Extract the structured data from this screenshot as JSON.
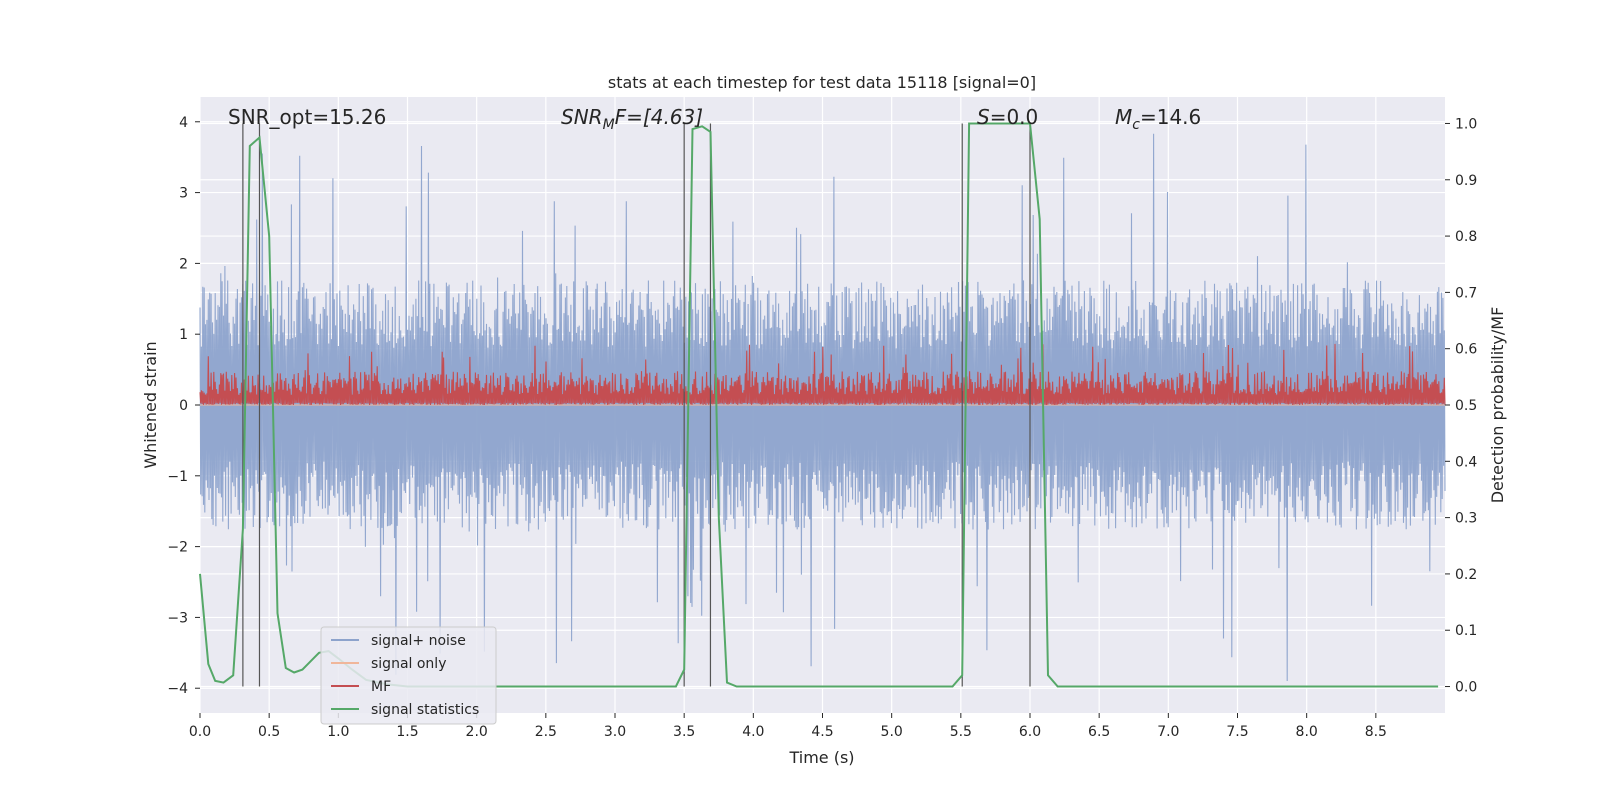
{
  "chart_data": {
    "type": "line",
    "title": "stats at each timestep for test data 15118 [signal=0]",
    "xlabel": "Time (s)",
    "ylabel_left": "Whitened strain",
    "ylabel_right": "Detection probability/MF",
    "xlim": [
      0.0,
      9.0
    ],
    "ylim_left": [
      -4.35,
      4.35
    ],
    "ylim_right": [
      -0.047,
      1.047
    ],
    "x_ticks": [
      0.0,
      0.5,
      1.0,
      1.5,
      2.0,
      2.5,
      3.0,
      3.5,
      4.0,
      4.5,
      5.0,
      5.5,
      6.0,
      6.5,
      7.0,
      7.5,
      8.0,
      8.5
    ],
    "x_tick_labels": [
      "0.0",
      "0.5",
      "1.0",
      "1.5",
      "2.0",
      "2.5",
      "3.0",
      "3.5",
      "4.0",
      "4.5",
      "5.0",
      "5.5",
      "6.0",
      "6.5",
      "7.0",
      "7.5",
      "8.0",
      "8.5"
    ],
    "y_left_ticks": [
      4,
      3,
      2,
      1,
      0,
      -1,
      -2,
      -3,
      -4
    ],
    "y_left_tick_labels": [
      "4",
      "3",
      "2",
      "1",
      "0",
      "−1",
      "−2",
      "−3",
      "−4"
    ],
    "y_right_ticks": [
      1.0,
      0.9,
      0.8,
      0.7,
      0.6,
      0.5,
      0.4,
      0.3,
      0.2,
      0.1,
      0.0
    ],
    "y_right_tick_labels": [
      "1.0",
      "0.9",
      "0.8",
      "0.7",
      "0.6",
      "0.5",
      "0.4",
      "0.3",
      "0.2",
      "0.1",
      "0.0"
    ],
    "grid": true,
    "legend_position": "lower-left",
    "annotations": {
      "snr_opt": "SNR_opt=15.26",
      "snr_mf_main": "SNR",
      "snr_mf_sub": "M",
      "snr_mf_tail": "F=[4.63]",
      "s_main": "S",
      "s_tail": "=0.0",
      "mc_main": "M",
      "mc_sub": "c",
      "mc_tail": "=14.6"
    },
    "vertical_lines": [
      {
        "x0": 0.31,
        "x1": 0.43
      },
      {
        "x0": 3.5,
        "x1": 3.69
      },
      {
        "x0": 5.51,
        "x1": 6.0
      }
    ],
    "series": [
      {
        "name": "signal+ noise",
        "axis": "left",
        "color": "#8da3cc",
        "style": "noise",
        "amplitude_typical": 1.6,
        "amplitude_peak": 4.0,
        "samples": 1800
      },
      {
        "name": "signal only",
        "axis": "left",
        "color": "#f0b69a",
        "style": "flat",
        "value": 0.0
      },
      {
        "name": "MF",
        "axis": "right",
        "color": "#c44e52",
        "style": "noise",
        "baseline": 0.5,
        "typical_max": 0.56,
        "peak_max": 0.61,
        "samples": 1800
      },
      {
        "name": "signal statistics",
        "axis": "right",
        "color": "#55a868",
        "style": "line",
        "x": [
          0.0,
          0.06,
          0.11,
          0.17,
          0.24,
          0.31,
          0.36,
          0.43,
          0.5,
          0.56,
          0.62,
          0.68,
          0.74,
          0.8,
          0.86,
          0.93,
          1.0,
          1.1,
          1.2,
          1.35,
          1.5,
          2.0,
          2.5,
          3.0,
          3.44,
          3.5,
          3.56,
          3.63,
          3.69,
          3.75,
          3.81,
          3.88,
          4.0,
          4.5,
          5.0,
          5.44,
          5.51,
          5.56,
          5.75,
          6.0,
          6.07,
          6.13,
          6.2,
          6.5,
          7.0,
          7.5,
          8.0,
          8.5,
          8.95
        ],
        "y": [
          0.2,
          0.04,
          0.01,
          0.007,
          0.02,
          0.28,
          0.96,
          0.975,
          0.8,
          0.13,
          0.033,
          0.025,
          0.03,
          0.045,
          0.06,
          0.063,
          0.05,
          0.03,
          0.012,
          0.004,
          0.0,
          0.0,
          0.0,
          0.0,
          0.0,
          0.03,
          0.99,
          0.995,
          0.985,
          0.3,
          0.007,
          0.0,
          0.0,
          0.0,
          0.0,
          0.0,
          0.02,
          1.0,
          1.0,
          1.0,
          0.83,
          0.02,
          0.0,
          0.0,
          0.0,
          0.0,
          0.0,
          0.0,
          0.0
        ]
      }
    ]
  }
}
